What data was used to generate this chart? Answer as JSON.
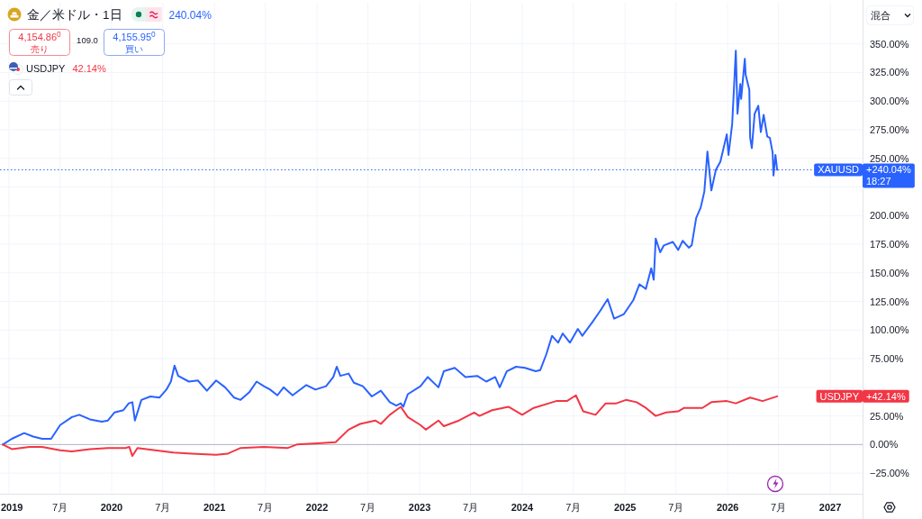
{
  "chart_data": {
    "type": "line",
    "title": "金／米ドル・1日",
    "series": [
      {
        "name": "XAUUSD",
        "color": "#2962ff",
        "x": [
          "2018-12-10",
          "2019-01-11",
          "2019-02-24",
          "2019-03-28",
          "2019-04-29",
          "2019-05-31",
          "2019-07-02",
          "2019-08-13",
          "2019-09-08",
          "2019-10-16",
          "2019-11-27",
          "2019-12-19",
          "2020-01-11",
          "2020-02-12",
          "2020-03-02",
          "2020-03-15",
          "2020-03-24",
          "2020-04-16",
          "2020-05-18",
          "2020-06-19",
          "2020-07-14",
          "2020-07-30",
          "2020-08-12",
          "2020-08-25",
          "2020-10-02",
          "2020-11-03",
          "2020-12-05",
          "2021-01-07",
          "2021-02-08",
          "2021-03-12",
          "2021-04-04",
          "2021-05-06",
          "2021-05-31",
          "2021-06-26",
          "2021-07-18",
          "2021-08-13",
          "2021-09-04",
          "2021-10-06",
          "2021-11-24",
          "2021-12-26",
          "2022-02-02",
          "2022-02-28",
          "2022-03-12",
          "2022-03-25",
          "2022-04-23",
          "2022-05-12",
          "2022-06-13",
          "2022-07-15",
          "2022-08-16",
          "2022-09-17",
          "2022-10-10",
          "2022-10-26",
          "2022-11-04",
          "2022-11-20",
          "2023-01-04",
          "2023-01-30",
          "2023-03-09",
          "2023-03-28",
          "2023-05-06",
          "2023-06-13",
          "2023-07-25",
          "2023-08-26",
          "2023-09-27",
          "2023-10-13",
          "2023-11-07",
          "2023-12-10",
          "2024-01-11",
          "2024-02-18",
          "2024-03-05",
          "2024-03-27",
          "2024-04-16",
          "2024-05-08",
          "2024-05-24",
          "2024-06-19",
          "2024-07-17",
          "2024-08-02",
          "2024-09-07",
          "2024-10-05",
          "2024-10-31",
          "2024-11-23",
          "2024-12-28",
          "2025-01-30",
          "2025-02-21",
          "2025-03-16",
          "2025-04-04",
          "2025-04-13",
          "2025-04-20",
          "2025-05-06",
          "2025-05-19",
          "2025-06-20",
          "2025-07-09",
          "2025-07-25",
          "2025-08-16",
          "2025-08-26",
          "2025-09-11",
          "2025-09-27",
          "2025-10-10",
          "2025-10-21",
          "2025-11-04",
          "2025-11-20",
          "2025-12-06",
          "2025-12-29",
          "2026-01-04",
          "2026-01-17",
          "2026-01-23",
          "2026-01-30",
          "2026-02-05",
          "2026-02-15",
          "2026-02-18",
          "2026-03-03",
          "2026-03-06",
          "2026-03-19",
          "2026-03-22",
          "2026-03-28",
          "2026-04-07",
          "2026-04-20",
          "2026-04-29",
          "2026-05-09",
          "2026-05-22",
          "2026-05-31",
          "2026-06-10",
          "2026-06-13",
          "2026-06-20",
          "2026-06-26"
        ],
        "values": [
          0,
          5,
          10,
          7,
          5,
          5,
          17,
          24,
          26,
          22,
          20,
          21,
          28,
          30,
          36,
          37,
          21,
          39,
          42,
          41,
          48,
          55,
          69,
          60,
          55,
          56,
          47,
          56,
          50,
          41,
          39,
          46,
          55,
          51,
          48,
          43,
          50,
          43,
          52,
          48,
          51,
          59,
          68,
          60,
          62,
          54,
          51,
          42,
          47,
          37,
          34,
          36,
          33,
          44,
          51,
          59,
          50,
          64,
          67,
          59,
          60,
          55,
          59,
          50,
          64,
          68,
          67,
          64,
          65,
          79,
          95,
          89,
          97,
          89,
          101,
          95,
          107,
          117,
          127,
          110,
          114,
          126,
          140,
          136,
          154,
          144,
          180,
          168,
          174,
          177,
          170,
          178,
          172,
          174,
          198,
          207,
          221,
          256,
          222,
          240,
          247,
          271,
          253,
          280,
          309,
          344,
          289,
          315,
          302,
          337,
          323,
          310,
          268,
          259,
          289,
          296,
          273,
          288,
          269,
          268,
          255,
          235,
          253,
          240.04
        ]
      },
      {
        "name": "USDJPY",
        "color": "#f23645",
        "x": [
          "2018-12-10",
          "2019-01-11",
          "2019-03-15",
          "2019-04-29",
          "2019-07-02",
          "2019-08-13",
          "2019-10-16",
          "2019-12-19",
          "2020-02-20",
          "2020-03-04",
          "2020-03-15",
          "2020-04-02",
          "2020-06-05",
          "2020-08-08",
          "2020-10-12",
          "2021-01-07",
          "2021-02-17",
          "2021-04-04",
          "2021-06-26",
          "2021-09-19",
          "2021-10-21",
          "2022-01-03",
          "2022-03-08",
          "2022-04-23",
          "2022-06-03",
          "2022-07-27",
          "2022-08-16",
          "2022-09-17",
          "2022-10-26",
          "2022-11-20",
          "2023-01-04",
          "2023-01-23",
          "2023-03-09",
          "2023-03-28",
          "2023-05-21",
          "2023-07-14",
          "2023-08-02",
          "2023-09-16",
          "2023-11-13",
          "2024-01-01",
          "2024-02-11",
          "2024-05-01",
          "2024-06-08",
          "2024-07-10",
          "2024-08-05",
          "2024-09-18",
          "2024-10-24",
          "2024-12-01",
          "2025-01-04",
          "2025-02-11",
          "2025-03-16",
          "2025-04-20",
          "2025-05-27",
          "2025-07-09",
          "2025-07-30",
          "2025-10-03",
          "2025-11-04",
          "2025-12-29",
          "2026-01-30",
          "2026-03-22",
          "2026-05-05",
          "2026-06-26"
        ],
        "values": [
          0,
          -4,
          -2,
          -2,
          -5,
          -6,
          -4,
          -3,
          -3,
          -2,
          -10,
          -3,
          -5,
          -7,
          -8,
          -9,
          -8,
          -3,
          -2,
          -3,
          0,
          1,
          2,
          13,
          18,
          21,
          18,
          26,
          33,
          24,
          17,
          13,
          21,
          16,
          21,
          28,
          25,
          30,
          33,
          26,
          32,
          38,
          38,
          43,
          29,
          26,
          36,
          36,
          39,
          37,
          32,
          25,
          28,
          29,
          32,
          32,
          37,
          38,
          36,
          41,
          38,
          42.14
        ]
      }
    ],
    "xlim": [
      "2018-11-30",
      "2027-04-26"
    ],
    "xticks": [
      {
        "value": "2019-01-01",
        "label": "2019"
      },
      {
        "value": "2019-07-01",
        "label": "7月"
      },
      {
        "value": "2020-01-01",
        "label": "2020"
      },
      {
        "value": "2020-07-01",
        "label": "7月"
      },
      {
        "value": "2021-01-01",
        "label": "2021"
      },
      {
        "value": "2021-07-01",
        "label": "7月"
      },
      {
        "value": "2022-01-01",
        "label": "2022"
      },
      {
        "value": "2022-07-01",
        "label": "7月"
      },
      {
        "value": "2023-01-01",
        "label": "2023"
      },
      {
        "value": "2023-07-01",
        "label": "7月"
      },
      {
        "value": "2024-01-01",
        "label": "2024"
      },
      {
        "value": "2024-07-01",
        "label": "7月"
      },
      {
        "value": "2025-01-01",
        "label": "2025"
      },
      {
        "value": "2025-07-01",
        "label": "7月"
      },
      {
        "value": "2026-01-01",
        "label": "2026"
      },
      {
        "value": "2026-07-01",
        "label": "7月"
      },
      {
        "value": "2027-01-01",
        "label": "2027"
      }
    ],
    "ylim": [
      -43,
      386
    ],
    "yticks": [
      {
        "value": -25,
        "label": "−25.00%"
      },
      {
        "value": 0,
        "label": "0.00%"
      },
      {
        "value": 25,
        "label": "25.00%"
      },
      {
        "value": 50,
        "label": null
      },
      {
        "value": 75,
        "label": "75.00%"
      },
      {
        "value": 100,
        "label": "100.00%"
      },
      {
        "value": 125,
        "label": "125.00%"
      },
      {
        "value": 150,
        "label": "150.00%"
      },
      {
        "value": 175,
        "label": "175.00%"
      },
      {
        "value": 200,
        "label": "200.00%"
      },
      {
        "value": 225,
        "label": null
      },
      {
        "value": 250,
        "label": "250.00%"
      },
      {
        "value": 275,
        "label": "275.00%"
      },
      {
        "value": 300,
        "label": "300.00%"
      },
      {
        "value": 325,
        "label": "325.00%"
      },
      {
        "value": 350,
        "label": "350.00%"
      }
    ],
    "grid": true,
    "legend": "right",
    "ref_lines": [
      {
        "axis": "y",
        "value": 0,
        "color": "#b2b5be"
      },
      {
        "axis": "y",
        "value": 240.04,
        "color": "#2962ff",
        "line_style": "dotted"
      }
    ],
    "annotations": [
      "240.04%",
      "4,154.86$^{0}$",
      "売り",
      "109.0",
      "4,155.95$^{0}$",
      "買い",
      "42.14%",
      "+240.04%",
      "18:27",
      "+42.14%",
      "混合"
    ]
  }
}
